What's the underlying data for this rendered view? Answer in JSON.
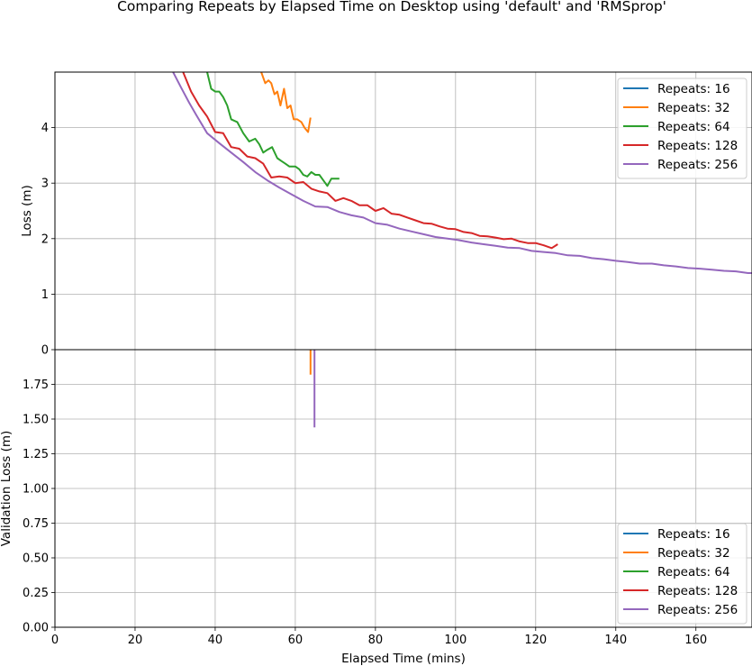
{
  "title": "Comparing Repeats by Elapsed Time on Desktop using 'default' and 'RMSprop'",
  "chart_data": [
    {
      "type": "line",
      "title": "",
      "xlabel": "",
      "ylabel": "Loss (m)",
      "xlim": [
        0,
        174
      ],
      "ylim": [
        0,
        5
      ],
      "yticks": [
        "0",
        "1",
        "2",
        "3",
        "4"
      ],
      "ytick_values": [
        0,
        1,
        2,
        3,
        4
      ],
      "xticks_values": [
        0,
        20,
        40,
        60,
        80,
        100,
        120,
        140,
        160
      ],
      "grid": true,
      "legend": "top-right",
      "series": [
        {
          "name": "Repeats: 16",
          "color": "#1f77b4",
          "x": [],
          "y": []
        },
        {
          "name": "Repeats: 32",
          "color": "#ff7f0e",
          "x": [
            51.5,
            52.5,
            53.3,
            54.0,
            54.8,
            55.5,
            56.3,
            57.2,
            58.0,
            58.8,
            59.6,
            60.5,
            61.5,
            62.3,
            63.2,
            63.8
          ],
          "y": [
            5.0,
            4.8,
            4.85,
            4.8,
            4.6,
            4.65,
            4.4,
            4.7,
            4.35,
            4.4,
            4.15,
            4.15,
            4.1,
            4.0,
            3.92,
            4.18
          ]
        },
        {
          "name": "Repeats: 64",
          "color": "#2ca02c",
          "x": [
            38.0,
            39.0,
            40.0,
            41.0,
            42.0,
            43.0,
            44.0,
            45.5,
            47.0,
            48.5,
            50.0,
            51.0,
            52.0,
            53.0,
            54.2,
            55.5,
            56.5,
            57.5,
            58.5,
            60.0,
            61.0,
            62.0,
            63.0,
            64.0,
            65.0,
            66.0,
            67.0,
            68.0,
            69.0,
            70.0,
            71.0
          ],
          "y": [
            5.0,
            4.7,
            4.65,
            4.65,
            4.55,
            4.4,
            4.15,
            4.1,
            3.9,
            3.75,
            3.8,
            3.7,
            3.55,
            3.6,
            3.65,
            3.45,
            3.4,
            3.35,
            3.3,
            3.3,
            3.25,
            3.15,
            3.12,
            3.2,
            3.15,
            3.15,
            3.05,
            2.95,
            3.08,
            3.08,
            3.08
          ]
        },
        {
          "name": "Repeats: 128",
          "color": "#d62728",
          "x": [
            32.0,
            34.0,
            36.0,
            38.0,
            40.0,
            42.0,
            44.0,
            46.0,
            48.0,
            50.0,
            52.0,
            54.0,
            56.0,
            58.0,
            60.0,
            62.0,
            64.0,
            66.0,
            68.0,
            70.0,
            72.0,
            74.0,
            76.0,
            78.0,
            80.0,
            82.0,
            84.0,
            86.0,
            88.0,
            90.0,
            92.0,
            94.0,
            96.0,
            98.0,
            100.0,
            102.0,
            104.0,
            106.0,
            108.0,
            110.0,
            112.0,
            114.0,
            116.0,
            118.0,
            120.0,
            122.0,
            124.0,
            125.5
          ],
          "y": [
            5.0,
            4.65,
            4.4,
            4.2,
            3.92,
            3.9,
            3.65,
            3.62,
            3.48,
            3.45,
            3.35,
            3.1,
            3.12,
            3.1,
            3.0,
            3.02,
            2.9,
            2.85,
            2.82,
            2.68,
            2.73,
            2.68,
            2.6,
            2.6,
            2.5,
            2.55,
            2.45,
            2.43,
            2.38,
            2.33,
            2.28,
            2.27,
            2.22,
            2.18,
            2.17,
            2.12,
            2.1,
            2.05,
            2.04,
            2.02,
            1.99,
            2.0,
            1.95,
            1.92,
            1.92,
            1.88,
            1.83,
            1.9
          ]
        },
        {
          "name": "Repeats: 256",
          "color": "#9467bd",
          "x": [
            29.5,
            31.5,
            33.5,
            35.5,
            38.0,
            41.0,
            44.0,
            47.0,
            50.0,
            53.0,
            56.0,
            59.0,
            62.0,
            65.0,
            68.0,
            71.0,
            74.0,
            77.0,
            80.0,
            83.0,
            86.0,
            89.0,
            92.0,
            95.0,
            98.0,
            101.0,
            104.0,
            107.0,
            110.0,
            113.0,
            116.0,
            119.0,
            122.0,
            125.0,
            128.0,
            131.0,
            134.0,
            137.0,
            140.0,
            143.0,
            146.0,
            149.0,
            152.0,
            155.0,
            158.0,
            161.0,
            164.0,
            167.0,
            170.0,
            173.0,
            174.0
          ],
          "y": [
            5.0,
            4.72,
            4.45,
            4.2,
            3.9,
            3.72,
            3.55,
            3.38,
            3.2,
            3.05,
            2.92,
            2.8,
            2.68,
            2.58,
            2.57,
            2.48,
            2.42,
            2.38,
            2.28,
            2.25,
            2.18,
            2.13,
            2.08,
            2.03,
            2.0,
            1.97,
            1.93,
            1.9,
            1.87,
            1.84,
            1.83,
            1.78,
            1.76,
            1.74,
            1.7,
            1.69,
            1.65,
            1.63,
            1.6,
            1.58,
            1.55,
            1.55,
            1.52,
            1.5,
            1.47,
            1.46,
            1.44,
            1.42,
            1.41,
            1.38,
            1.38
          ]
        }
      ]
    },
    {
      "type": "line",
      "title": "",
      "xlabel": "Elapsed Time (mins)",
      "ylabel": "Validation Loss (m)",
      "xlim": [
        0,
        174
      ],
      "ylim": [
        0,
        2.0
      ],
      "yticks": [
        "0.00",
        "0.25",
        "0.50",
        "0.75",
        "1.00",
        "1.25",
        "1.50",
        "1.75"
      ],
      "ytick_values": [
        0,
        0.25,
        0.5,
        0.75,
        1.0,
        1.25,
        1.5,
        1.75
      ],
      "xticks": [
        "0",
        "20",
        "40",
        "60",
        "80",
        "100",
        "120",
        "140",
        "160"
      ],
      "xtick_values": [
        0,
        20,
        40,
        60,
        80,
        100,
        120,
        140,
        160
      ],
      "grid": true,
      "legend": "lower-right",
      "series": [
        {
          "name": "Repeats: 16",
          "color": "#1f77b4",
          "x": [],
          "y": []
        },
        {
          "name": "Repeats: 32",
          "color": "#ff7f0e",
          "x": [
            63.8,
            63.8
          ],
          "y": [
            2.0,
            1.82
          ]
        },
        {
          "name": "Repeats: 64",
          "color": "#2ca02c",
          "x": [],
          "y": []
        },
        {
          "name": "Repeats: 128",
          "color": "#d62728",
          "x": [],
          "y": []
        },
        {
          "name": "Repeats: 256",
          "color": "#9467bd",
          "x": [
            64.8,
            64.8
          ],
          "y": [
            2.0,
            1.44
          ]
        }
      ]
    }
  ]
}
